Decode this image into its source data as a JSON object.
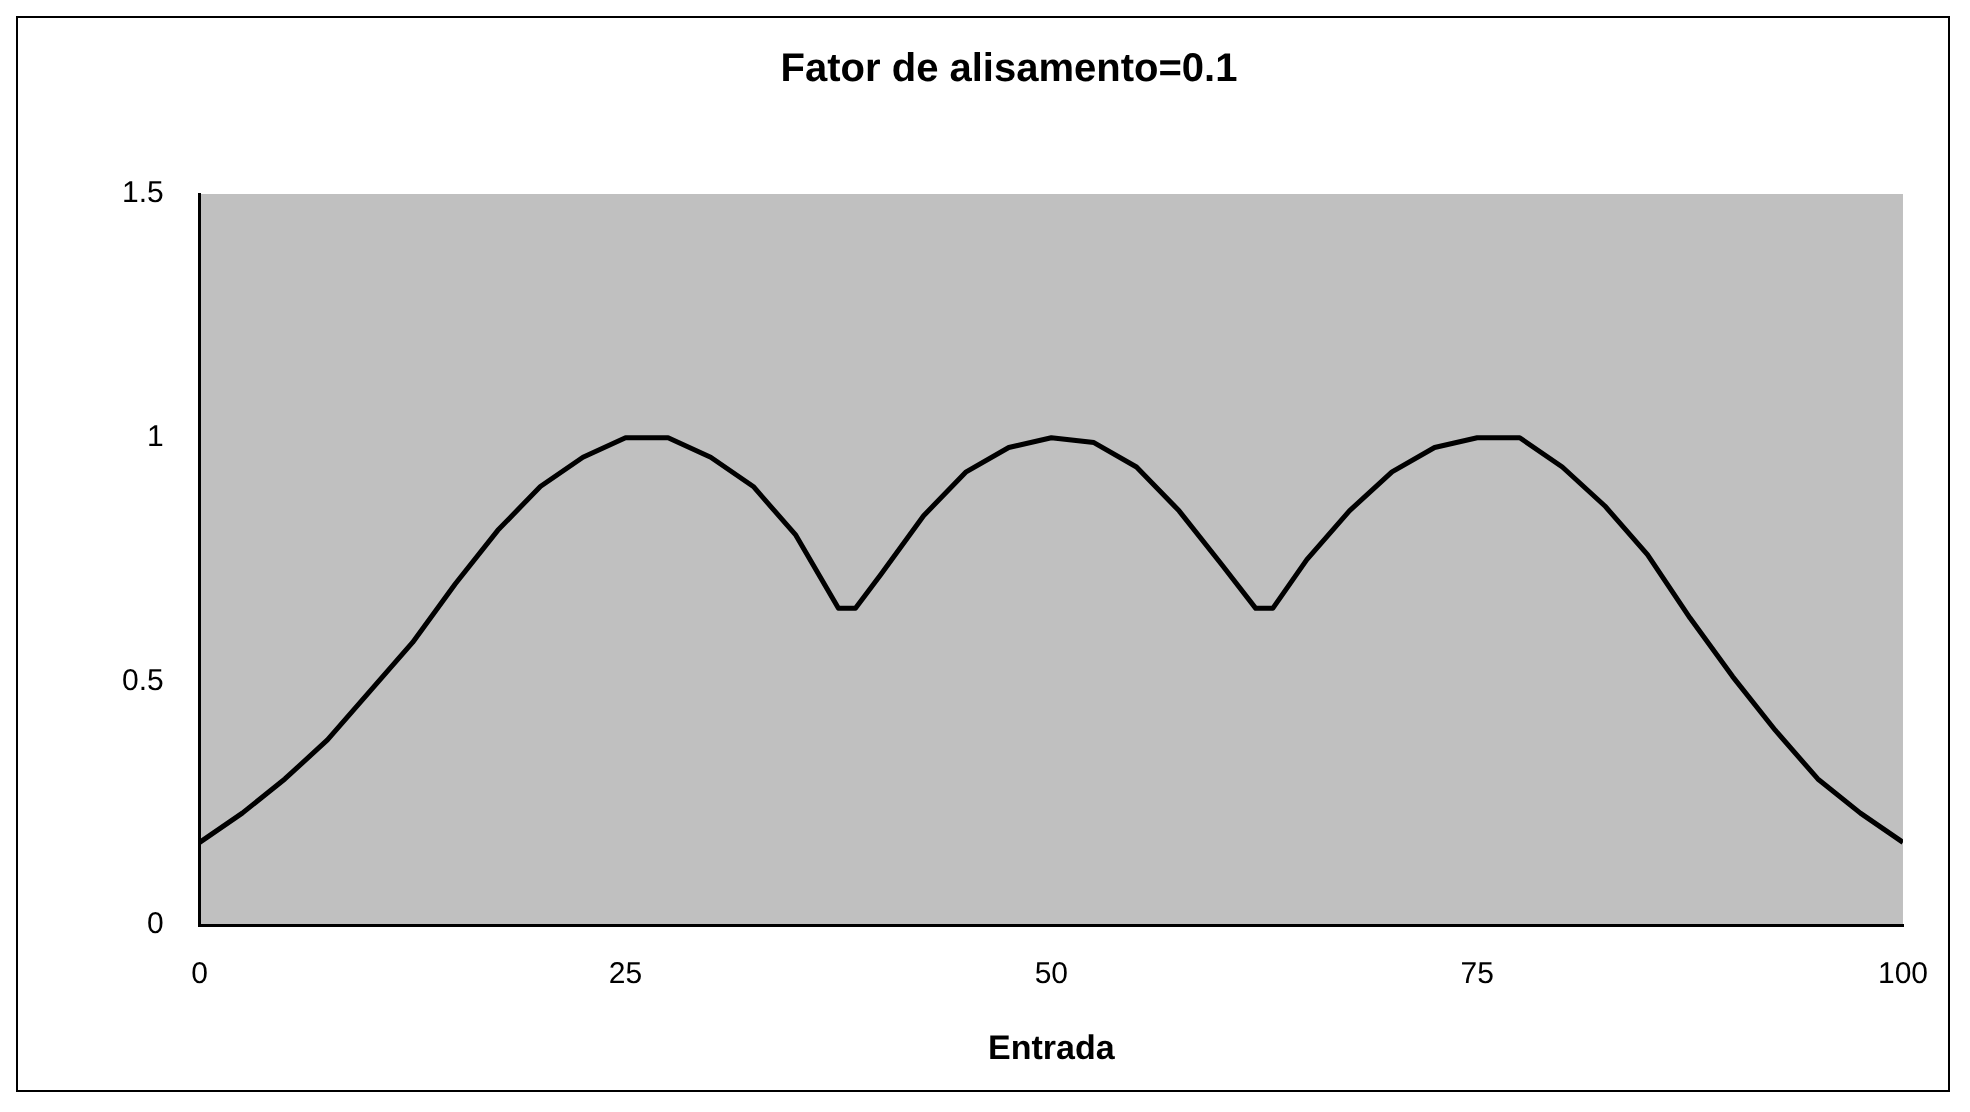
{
  "chart_data": {
    "type": "line",
    "title": "Fator de alisamento=0.1",
    "xlabel": "Entrada",
    "x": [
      0,
      2.5,
      5,
      7.5,
      10,
      12.5,
      15,
      17.5,
      20,
      22.5,
      25,
      27.5,
      30,
      32.5,
      35,
      37.5,
      38.5,
      40,
      42.5,
      45,
      47.5,
      50,
      52.5,
      55,
      57.5,
      60,
      62,
      63,
      65,
      67.5,
      70,
      72.5,
      75,
      77.5,
      80,
      82.5,
      85,
      87.5,
      90,
      92.5,
      95,
      97.5,
      100
    ],
    "series": [
      {
        "color": "#000000",
        "values": [
          0.17,
          0.23,
          0.3,
          0.38,
          0.48,
          0.58,
          0.7,
          0.81,
          0.9,
          0.96,
          1.0,
          1.0,
          0.96,
          0.9,
          0.8,
          0.65,
          0.65,
          0.72,
          0.84,
          0.93,
          0.98,
          1.0,
          0.99,
          0.94,
          0.85,
          0.74,
          0.65,
          0.65,
          0.75,
          0.85,
          0.93,
          0.98,
          1.0,
          1.0,
          0.94,
          0.86,
          0.76,
          0.63,
          0.51,
          0.4,
          0.3,
          0.23,
          0.17
        ]
      }
    ],
    "xlim": [
      0,
      100
    ],
    "xticks": [
      0,
      25,
      50,
      75,
      100
    ],
    "ylim": [
      0,
      1.5
    ],
    "yticks": [
      0,
      {
        "value": 0.5,
        "label": "0.5"
      },
      1,
      {
        "value": 1.5,
        "label": "1.5"
      }
    ],
    "grid": false,
    "legend": false,
    "marker": "none",
    "line_style": "solid"
  }
}
